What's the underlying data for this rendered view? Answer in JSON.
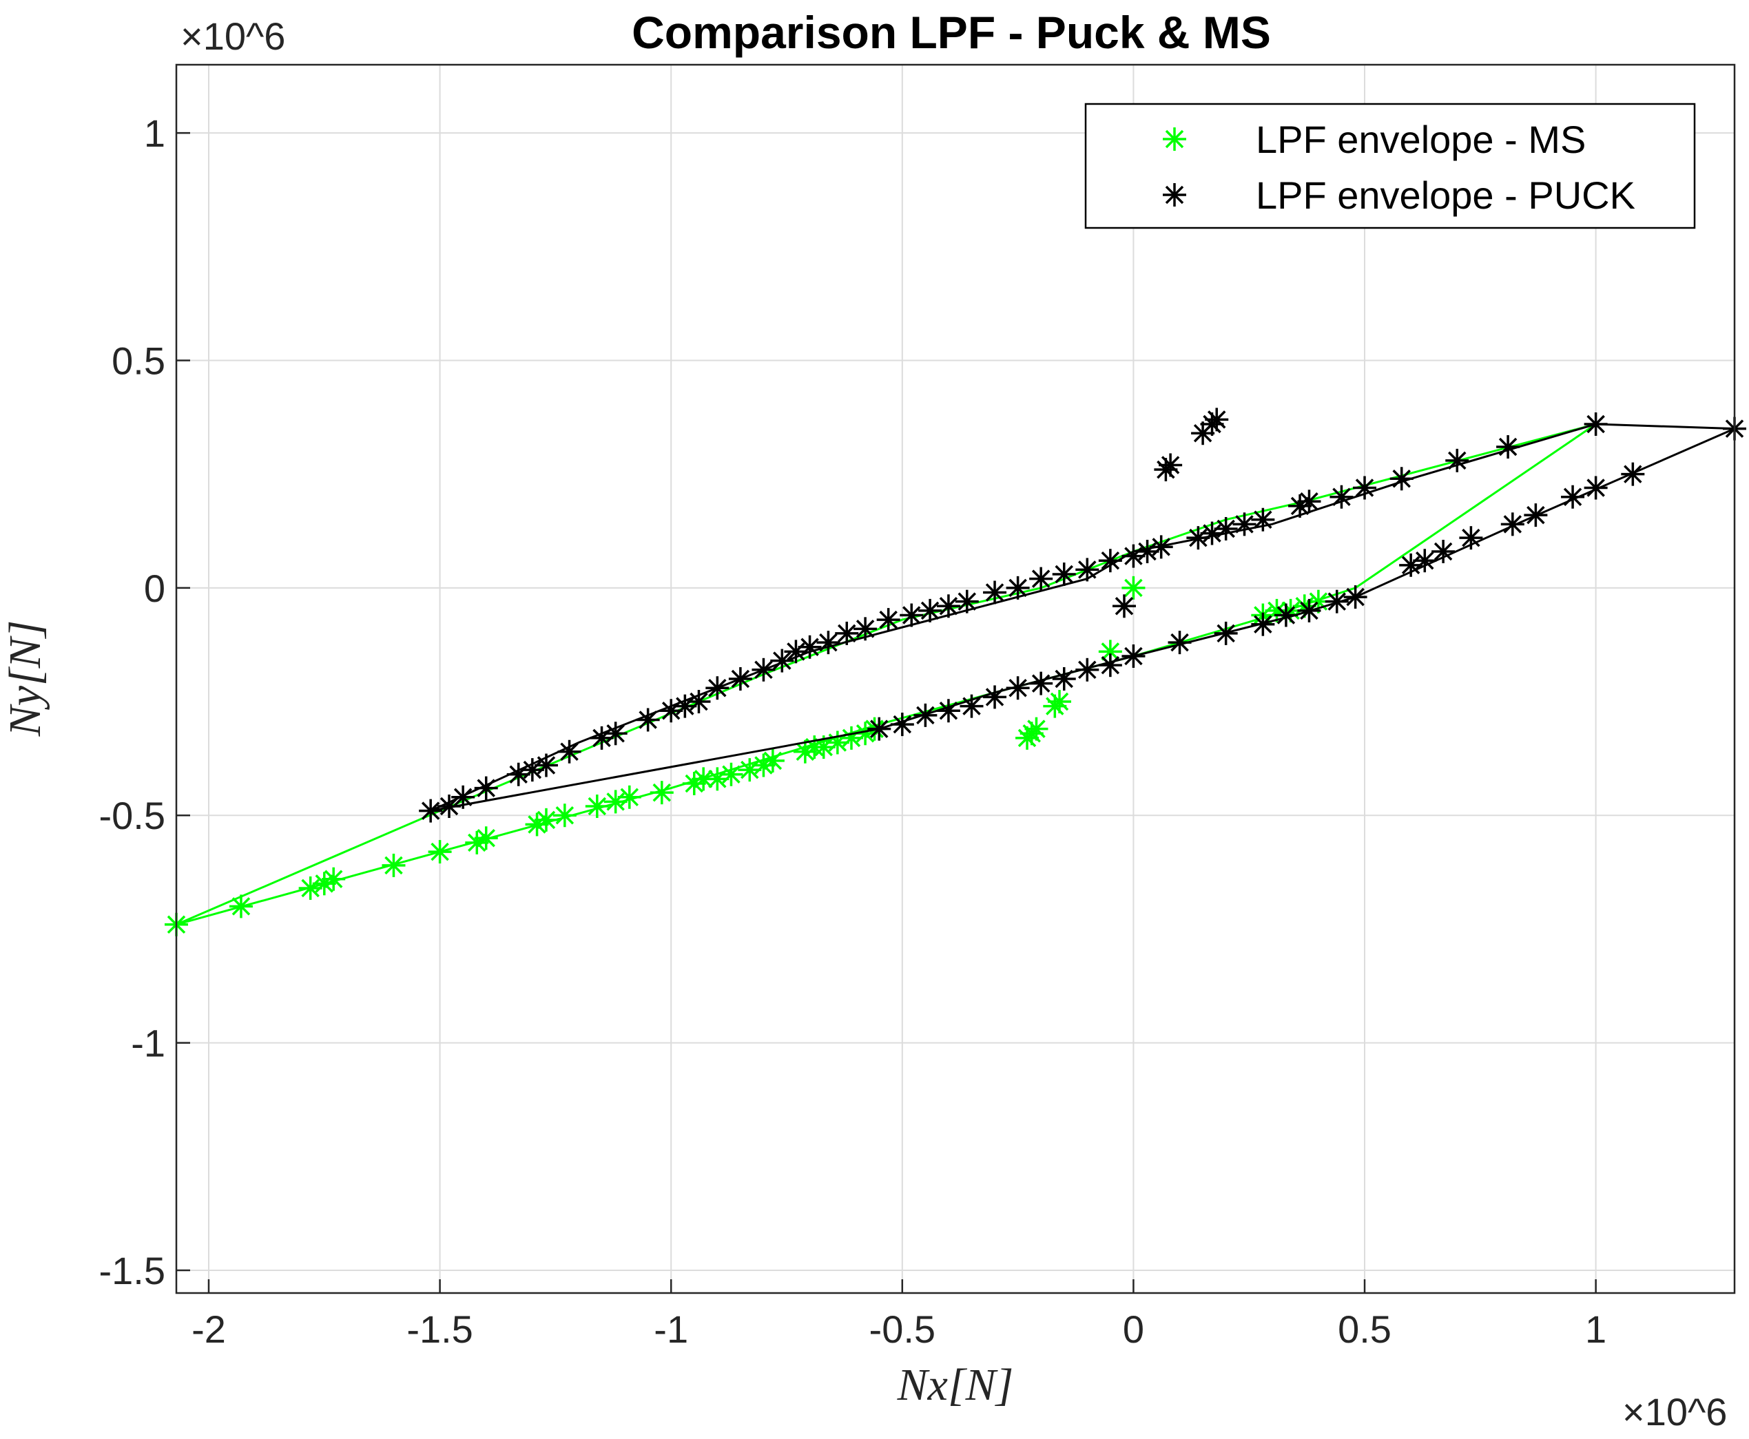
{
  "chart_data": {
    "type": "scatter",
    "title": "Comparison LPF - Puck & MS",
    "xlabel": "Nx[N]",
    "ylabel": "Ny[N]",
    "x_exponent_label": "×10^6",
    "y_exponent_label": "×10^6",
    "xlim": [
      -2.07,
      1.3
    ],
    "ylim": [
      -1.55,
      1.15
    ],
    "xticks": [
      -2,
      -1.5,
      -1,
      -0.5,
      0,
      0.5,
      1
    ],
    "xtick_labels": [
      "-2",
      "-1.5",
      "-1",
      "-0.5",
      "0",
      "0.5",
      "1"
    ],
    "yticks": [
      -1.5,
      -1,
      -0.5,
      0,
      0.5,
      1
    ],
    "ytick_labels": [
      "-1.5",
      "-1",
      "-0.5",
      "0",
      "0.5",
      "1"
    ],
    "grid": true,
    "legend_position": "top-right",
    "series": [
      {
        "name": "LPF envelope - MS",
        "color": "#00ff00",
        "marker": "asterisk",
        "line": [
          [
            -2.07,
            -0.74
          ],
          [
            -1.5,
            -0.49
          ],
          [
            -0.8,
            -0.19
          ],
          [
            -0.5,
            -0.07
          ],
          [
            -0.2,
            0.0
          ],
          [
            0.0,
            0.08
          ],
          [
            0.2,
            0.15
          ],
          [
            0.37,
            0.19
          ],
          [
            1.0,
            0.36
          ],
          [
            0.48,
            0.0
          ],
          [
            0.3,
            -0.06
          ],
          [
            0.0,
            -0.15
          ],
          [
            -0.3,
            -0.23
          ],
          [
            -0.55,
            -0.3
          ],
          [
            -1.0,
            -0.44
          ],
          [
            -1.5,
            -0.58
          ],
          [
            -2.07,
            -0.74
          ]
        ],
        "points": [
          [
            -2.07,
            -0.74
          ],
          [
            -1.93,
            -0.7
          ],
          [
            -1.78,
            -0.66
          ],
          [
            -1.75,
            -0.65
          ],
          [
            -1.73,
            -0.64
          ],
          [
            -1.6,
            -0.61
          ],
          [
            -1.5,
            -0.58
          ],
          [
            -1.42,
            -0.56
          ],
          [
            -1.4,
            -0.55
          ],
          [
            -1.29,
            -0.52
          ],
          [
            -1.27,
            -0.51
          ],
          [
            -1.23,
            -0.5
          ],
          [
            -1.16,
            -0.48
          ],
          [
            -1.12,
            -0.47
          ],
          [
            -1.09,
            -0.46
          ],
          [
            -1.02,
            -0.45
          ],
          [
            -0.95,
            -0.43
          ],
          [
            -0.93,
            -0.42
          ],
          [
            -0.9,
            -0.42
          ],
          [
            -0.87,
            -0.41
          ],
          [
            -0.83,
            -0.4
          ],
          [
            -0.8,
            -0.39
          ],
          [
            -0.78,
            -0.38
          ],
          [
            -0.71,
            -0.36
          ],
          [
            -0.69,
            -0.35
          ],
          [
            -0.67,
            -0.35
          ],
          [
            -0.64,
            -0.34
          ],
          [
            -0.61,
            -0.33
          ],
          [
            -0.58,
            -0.32
          ],
          [
            -0.56,
            -0.31
          ],
          [
            0.28,
            -0.06
          ],
          [
            0.31,
            -0.05
          ],
          [
            0.34,
            -0.05
          ],
          [
            0.37,
            -0.04
          ],
          [
            0.4,
            -0.03
          ],
          [
            -0.23,
            -0.33
          ],
          [
            -0.22,
            -0.32
          ],
          [
            -0.21,
            -0.31
          ],
          [
            -0.17,
            -0.26
          ],
          [
            -0.16,
            -0.25
          ],
          [
            0.0,
            0.0
          ],
          [
            -0.05,
            -0.14
          ]
        ]
      },
      {
        "name": "LPF envelope - PUCK",
        "color": "#000000",
        "marker": "asterisk",
        "line": [
          [
            -1.52,
            -0.49
          ],
          [
            -1.2,
            -0.34
          ],
          [
            -0.9,
            -0.22
          ],
          [
            -0.7,
            -0.14
          ],
          [
            -0.4,
            -0.06
          ],
          [
            -0.1,
            0.02
          ],
          [
            0.0,
            0.08
          ],
          [
            0.3,
            0.14
          ],
          [
            0.6,
            0.24
          ],
          [
            1.0,
            0.36
          ],
          [
            1.3,
            0.35
          ],
          [
            0.85,
            0.15
          ],
          [
            0.48,
            -0.02
          ],
          [
            0.35,
            -0.06
          ],
          [
            0.0,
            -0.15
          ],
          [
            -0.3,
            -0.23
          ],
          [
            -0.55,
            -0.31
          ],
          [
            -1.52,
            -0.49
          ]
        ],
        "points": [
          [
            -1.52,
            -0.49
          ],
          [
            -1.48,
            -0.48
          ],
          [
            -1.45,
            -0.46
          ],
          [
            -1.4,
            -0.44
          ],
          [
            -1.33,
            -0.41
          ],
          [
            -1.3,
            -0.4
          ],
          [
            -1.27,
            -0.39
          ],
          [
            -1.22,
            -0.36
          ],
          [
            -1.15,
            -0.33
          ],
          [
            -1.12,
            -0.32
          ],
          [
            -1.05,
            -0.29
          ],
          [
            -1.0,
            -0.27
          ],
          [
            -0.97,
            -0.26
          ],
          [
            -0.94,
            -0.25
          ],
          [
            -0.9,
            -0.22
          ],
          [
            -0.85,
            -0.2
          ],
          [
            -0.8,
            -0.18
          ],
          [
            -0.76,
            -0.16
          ],
          [
            -0.73,
            -0.14
          ],
          [
            -0.7,
            -0.13
          ],
          [
            -0.66,
            -0.12
          ],
          [
            -0.62,
            -0.1
          ],
          [
            -0.58,
            -0.09
          ],
          [
            -0.53,
            -0.07
          ],
          [
            -0.48,
            -0.06
          ],
          [
            -0.44,
            -0.05
          ],
          [
            -0.4,
            -0.04
          ],
          [
            -0.36,
            -0.03
          ],
          [
            -0.3,
            -0.01
          ],
          [
            -0.25,
            0.0
          ],
          [
            -0.2,
            0.02
          ],
          [
            -0.15,
            0.03
          ],
          [
            -0.1,
            0.04
          ],
          [
            -0.05,
            0.06
          ],
          [
            0.0,
            0.07
          ],
          [
            0.03,
            0.08
          ],
          [
            0.06,
            0.09
          ],
          [
            -0.02,
            -0.04
          ],
          [
            0.08,
            0.27
          ],
          [
            0.07,
            0.26
          ],
          [
            0.15,
            0.34
          ],
          [
            0.17,
            0.36
          ],
          [
            0.18,
            0.37
          ],
          [
            0.14,
            0.11
          ],
          [
            0.17,
            0.12
          ],
          [
            0.2,
            0.13
          ],
          [
            0.24,
            0.14
          ],
          [
            0.28,
            0.15
          ],
          [
            0.36,
            0.18
          ],
          [
            0.38,
            0.19
          ],
          [
            0.45,
            0.2
          ],
          [
            0.5,
            0.22
          ],
          [
            0.58,
            0.24
          ],
          [
            0.7,
            0.28
          ],
          [
            0.81,
            0.31
          ],
          [
            1.0,
            0.36
          ],
          [
            1.3,
            0.35
          ],
          [
            1.08,
            0.25
          ],
          [
            1.0,
            0.22
          ],
          [
            0.95,
            0.2
          ],
          [
            0.87,
            0.16
          ],
          [
            0.82,
            0.14
          ],
          [
            0.73,
            0.11
          ],
          [
            0.67,
            0.08
          ],
          [
            0.63,
            0.06
          ],
          [
            0.6,
            0.05
          ],
          [
            0.48,
            -0.02
          ],
          [
            0.44,
            -0.03
          ],
          [
            0.38,
            -0.05
          ],
          [
            0.33,
            -0.06
          ],
          [
            0.28,
            -0.08
          ],
          [
            0.2,
            -0.1
          ],
          [
            0.1,
            -0.12
          ],
          [
            0.0,
            -0.15
          ],
          [
            -0.05,
            -0.17
          ],
          [
            -0.1,
            -0.18
          ],
          [
            -0.15,
            -0.2
          ],
          [
            -0.2,
            -0.21
          ],
          [
            -0.25,
            -0.22
          ],
          [
            -0.3,
            -0.24
          ],
          [
            -0.35,
            -0.26
          ],
          [
            -0.4,
            -0.27
          ],
          [
            -0.45,
            -0.28
          ],
          [
            -0.5,
            -0.3
          ],
          [
            -0.55,
            -0.31
          ]
        ]
      }
    ]
  }
}
